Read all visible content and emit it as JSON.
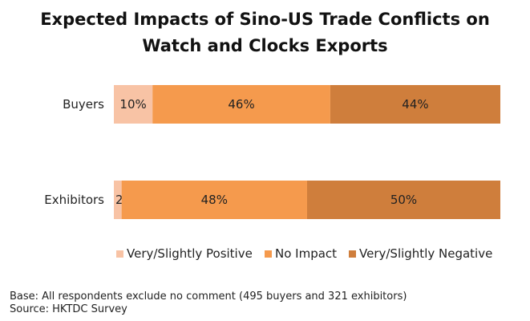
{
  "chart_data": {
    "type": "bar",
    "orientation": "horizontal",
    "stacked": true,
    "title": "Expected Impacts of Sino-US Trade Conflicts on Watch and Clocks Exports",
    "title_lines": [
      "Expected Impacts of Sino-US Trade Conflicts on",
      "Watch and Clocks Exports"
    ],
    "categories": [
      "Buyers",
      "Exhibitors"
    ],
    "series": [
      {
        "name": "Very/Slightly Positive",
        "values": [
          10,
          2
        ],
        "labels": [
          "10%",
          "2%"
        ],
        "color": "#f8c3a5"
      },
      {
        "name": "No Impact",
        "values": [
          46,
          48
        ],
        "labels": [
          "46%",
          "48%"
        ],
        "color": "#f59a4d"
      },
      {
        "name": "Very/Slightly Negative",
        "values": [
          44,
          50
        ],
        "labels": [
          "44%",
          "50%"
        ],
        "color": "#cf7e3c"
      }
    ],
    "xlim": [
      0,
      100
    ],
    "grid": false,
    "legend": "bottom"
  },
  "footnote": {
    "base": "Base: All respondents exclude no comment (495 buyers and 321 exhibitors)",
    "source": "Source: HKTDC Survey"
  }
}
